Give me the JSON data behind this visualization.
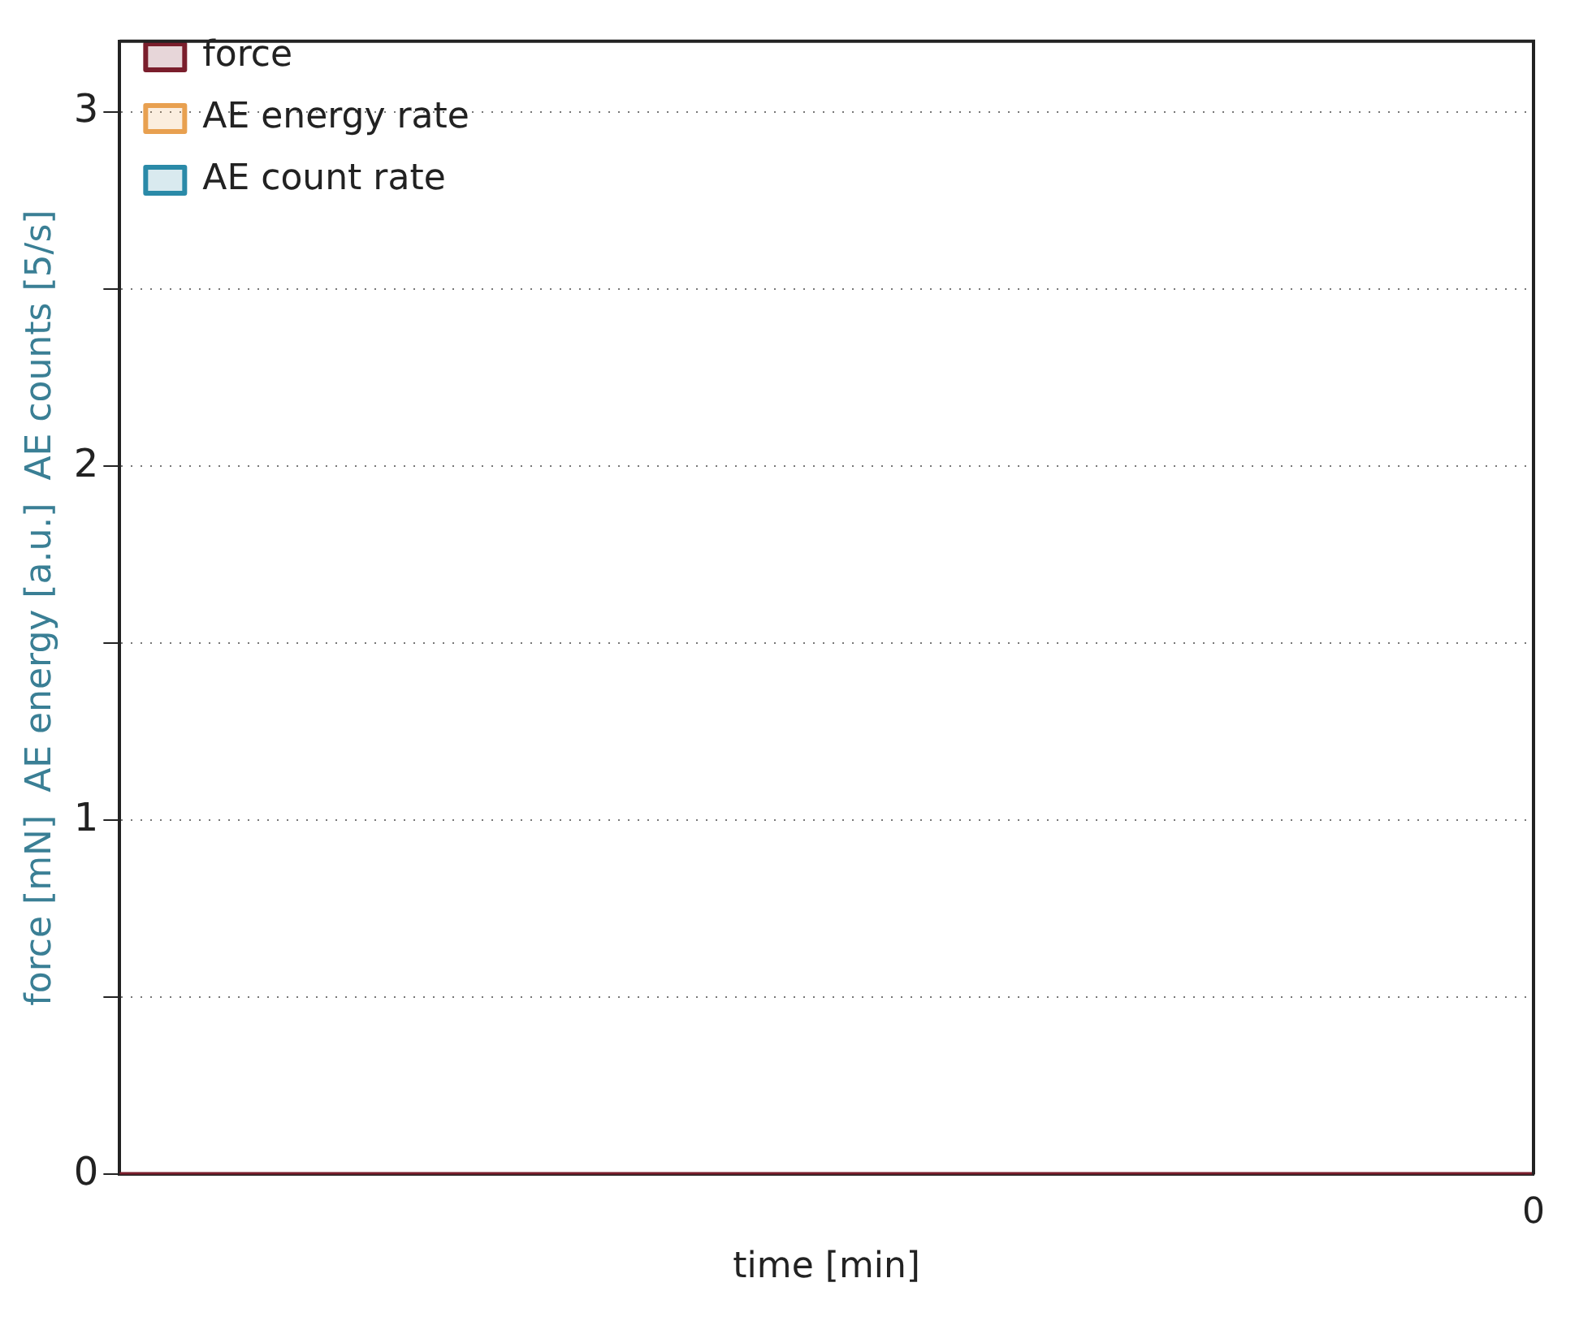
{
  "chart_data": {
    "type": "line",
    "xlabel": "time [min]",
    "ylabel": "force [mN]  AE energy [a.u.]  AE counts [5/s]",
    "categories": [
      null,
      null,
      null,
      null,
      null,
      null,
      null,
      null,
      null,
      null,
      "0"
    ],
    "series": [
      {
        "name": "force",
        "color": "#7a1e2c",
        "values": [
          0,
          0,
          0,
          0,
          0,
          0,
          0,
          0,
          0,
          0,
          0
        ]
      },
      {
        "name": "AE energy rate",
        "color": "#e8a050",
        "values": [
          null,
          null,
          null,
          null,
          null,
          null,
          null,
          null,
          null,
          null,
          null
        ]
      },
      {
        "name": "AE count rate",
        "color": "#2a8aa8",
        "values": [
          null,
          null,
          null,
          null,
          null,
          null,
          null,
          null,
          null,
          null,
          null
        ]
      }
    ],
    "ylim": [
      0,
      3.2
    ],
    "yticks": [
      0,
      {
        "value": 0.5,
        "label": null
      },
      1,
      {
        "value": 1.5,
        "label": null
      },
      2,
      {
        "value": 2.5,
        "label": null
      },
      3
    ],
    "grid": "y",
    "legend": "top left"
  }
}
